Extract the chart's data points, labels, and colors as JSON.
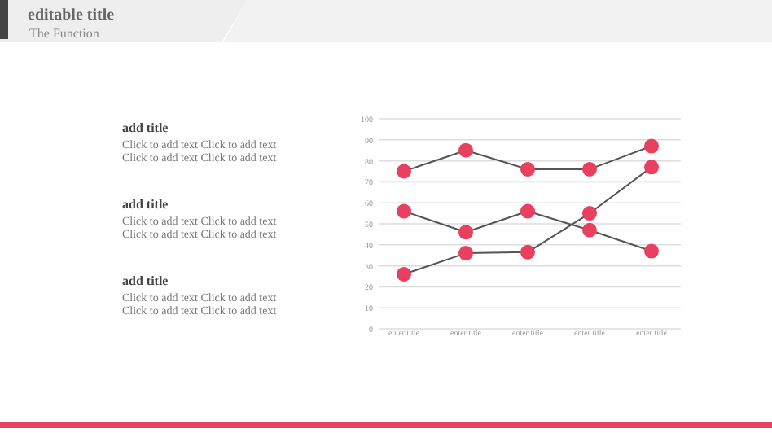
{
  "chart_data": {
    "type": "line",
    "title": "editable title",
    "subtitle": "The Function",
    "categories": [
      "enter title",
      "enter title",
      "enter title",
      "enter title",
      "enter title"
    ],
    "series": [
      {
        "color": "#e8405e",
        "values": [
          75,
          85,
          76,
          76,
          87
        ]
      },
      {
        "color": "#e8405e",
        "values": [
          56,
          46,
          56,
          47,
          37
        ]
      },
      {
        "color": "#e8405e",
        "values": [
          26,
          36,
          36.5,
          55,
          77
        ]
      }
    ],
    "ylim": [
      0,
      100
    ],
    "yticks": [
      0,
      10,
      20,
      30,
      40,
      50,
      60,
      70,
      80,
      90,
      100
    ],
    "grid": "y",
    "marker": "circle",
    "line_style": "solid",
    "annotations": [
      "add title",
      "Click to add text Click to add text",
      "Click to add text Click to add text",
      "add title",
      "Click to add text Click to add text",
      "Click to add text Click to add text",
      "add title",
      "Click to add text Click to add text",
      "Click to add text Click to add text"
    ]
  }
}
